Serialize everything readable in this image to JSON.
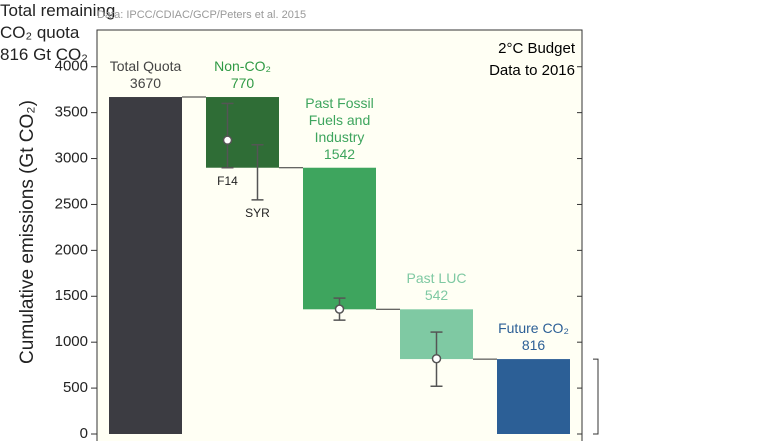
{
  "chart_data": {
    "type": "waterfall",
    "source": "Data: IPCC/CDIAC/GCP/Peters et al. 2015",
    "annotation": [
      "2°C Budget",
      "Data to 2016"
    ],
    "ylabel": "Cumulative emissions (Gt CO₂)",
    "categories": [
      "Total Quota",
      "Non-CO₂",
      "Past Fossil Fuels and Industry",
      "Past LUC",
      "Future CO₂"
    ],
    "values": [
      3670,
      770,
      1542,
      542,
      816
    ],
    "measure": [
      "total",
      "relative",
      "relative",
      "relative",
      "total"
    ],
    "colors": [
      "#3c3c42",
      "#2f6d36",
      "#3ea55e",
      "#7fc9a3",
      "#2c5f96"
    ],
    "label_colors": [
      "#444444",
      "#2f9a45",
      "#3ea55e",
      "#7fc9a3",
      "#2c5f96"
    ],
    "error_bars": [
      {
        "category": "Non-CO₂",
        "label": "F14",
        "center": 3200,
        "low": 2900,
        "high": 3600
      },
      {
        "category": "Non-CO₂",
        "label": "SYR",
        "low": 2550,
        "high": 3150
      },
      {
        "category": "Past Fossil Fuels and Industry",
        "center": 1360,
        "low": 1240,
        "high": 1480
      },
      {
        "category": "Past LUC",
        "center": 820,
        "low": 520,
        "high": 1110
      }
    ],
    "bracket": {
      "low": 0,
      "high": 816,
      "text": [
        "Total remaining",
        "CO₂ quota",
        "816 Gt CO₂"
      ]
    },
    "ylim": [
      0,
      4400
    ],
    "yticks": [
      0,
      500,
      1000,
      1500,
      2000,
      2500,
      3000,
      3500,
      4000
    ]
  }
}
